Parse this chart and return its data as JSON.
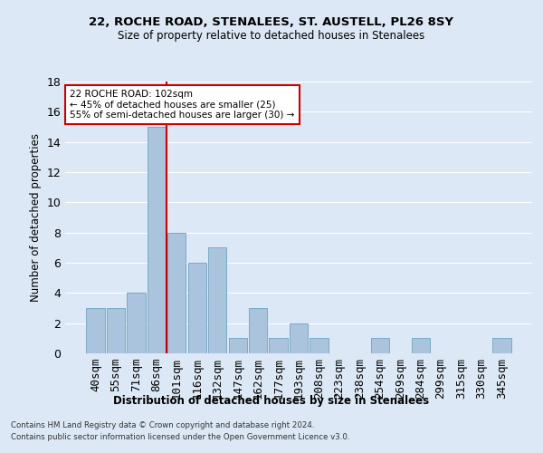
{
  "title": "22, ROCHE ROAD, STENALEES, ST. AUSTELL, PL26 8SY",
  "subtitle": "Size of property relative to detached houses in Stenalees",
  "xlabel": "Distribution of detached houses by size in Stenalees",
  "ylabel": "Number of detached properties",
  "bar_labels": [
    "40sqm",
    "55sqm",
    "71sqm",
    "86sqm",
    "101sqm",
    "116sqm",
    "132sqm",
    "147sqm",
    "162sqm",
    "177sqm",
    "193sqm",
    "208sqm",
    "223sqm",
    "238sqm",
    "254sqm",
    "269sqm",
    "284sqm",
    "299sqm",
    "315sqm",
    "330sqm",
    "345sqm"
  ],
  "bar_values": [
    3,
    3,
    4,
    15,
    8,
    6,
    7,
    1,
    3,
    1,
    2,
    1,
    0,
    0,
    1,
    0,
    1,
    0,
    0,
    0,
    1
  ],
  "bar_color": "#aac4dd",
  "bar_edge_color": "#7aaac8",
  "vline_color": "#cc0000",
  "vline_x_index": 4,
  "ylim": [
    0,
    18
  ],
  "yticks": [
    0,
    2,
    4,
    6,
    8,
    10,
    12,
    14,
    16,
    18
  ],
  "background_color": "#dce8f5",
  "grid_color": "#ffffff",
  "annotation_text": "22 ROCHE ROAD: 102sqm\n← 45% of detached houses are smaller (25)\n55% of semi-detached houses are larger (30) →",
  "annotation_box_color": "#ffffff",
  "annotation_box_edge_color": "#cc0000",
  "footer_line1": "Contains HM Land Registry data © Crown copyright and database right 2024.",
  "footer_line2": "Contains public sector information licensed under the Open Government Licence v3.0."
}
